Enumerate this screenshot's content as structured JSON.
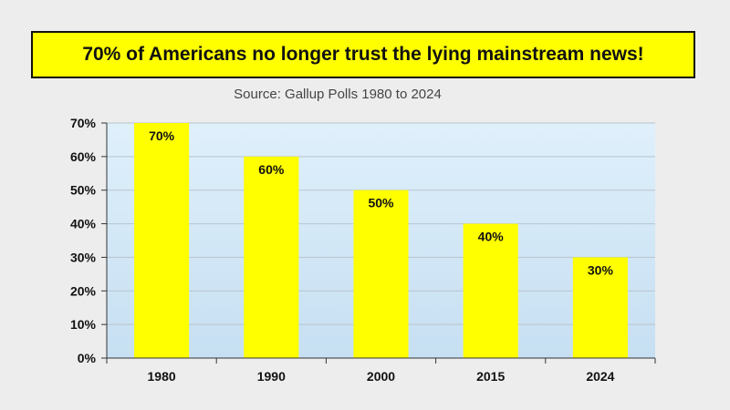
{
  "headline": "70% of Americans no longer trust the lying mainstream news!",
  "colors": {
    "bar": "#ffff00",
    "plot_top": "#dff0fb",
    "plot_bottom": "#c6dff2",
    "grid": "#b9c4cc",
    "axis": "#333333"
  },
  "chart_data": {
    "type": "bar",
    "title": "Source: Gallup Polls 1980 to 2024",
    "xlabel": "",
    "ylabel": "",
    "categories": [
      "1980",
      "1990",
      "2000",
      "2015",
      "2024"
    ],
    "values": [
      70,
      60,
      50,
      40,
      30
    ],
    "data_labels": [
      "70%",
      "60%",
      "50%",
      "40%",
      "30%"
    ],
    "ylim": [
      0,
      70
    ],
    "yticks": [
      0,
      10,
      20,
      30,
      40,
      50,
      60,
      70
    ],
    "ytick_labels": [
      "0%",
      "10%",
      "20%",
      "30%",
      "40%",
      "50%",
      "60%",
      "70%"
    ],
    "grid": true,
    "legend": "none"
  }
}
